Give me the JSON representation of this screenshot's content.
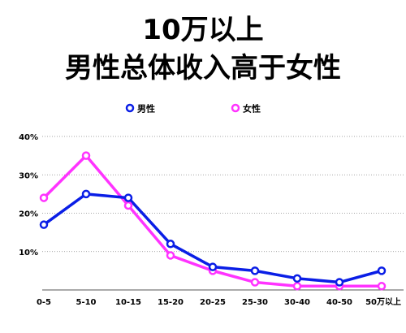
{
  "chart_data": {
    "type": "line",
    "title": "10万以上\n男性总体收入高于女性",
    "title_line1": "10万以上",
    "title_line2": "男性总体收入高于女性",
    "categories": [
      "0-5",
      "5-10",
      "10-15",
      "15-20",
      "20-25",
      "25-30",
      "30-40",
      "40-50",
      "50万以上"
    ],
    "y_ticks": [
      "10%",
      "20%",
      "30%",
      "40%"
    ],
    "ylim": [
      0,
      40
    ],
    "grid": "horizontal dotted",
    "legend_position": "top",
    "series": [
      {
        "name": "男性",
        "color": "#0a1ee6",
        "values": [
          17,
          25,
          24,
          12,
          6,
          5,
          3,
          2,
          5
        ]
      },
      {
        "name": "女性",
        "color": "#ff33ff",
        "values": [
          24,
          35,
          22,
          9,
          5,
          2,
          1,
          1,
          1
        ]
      }
    ]
  }
}
